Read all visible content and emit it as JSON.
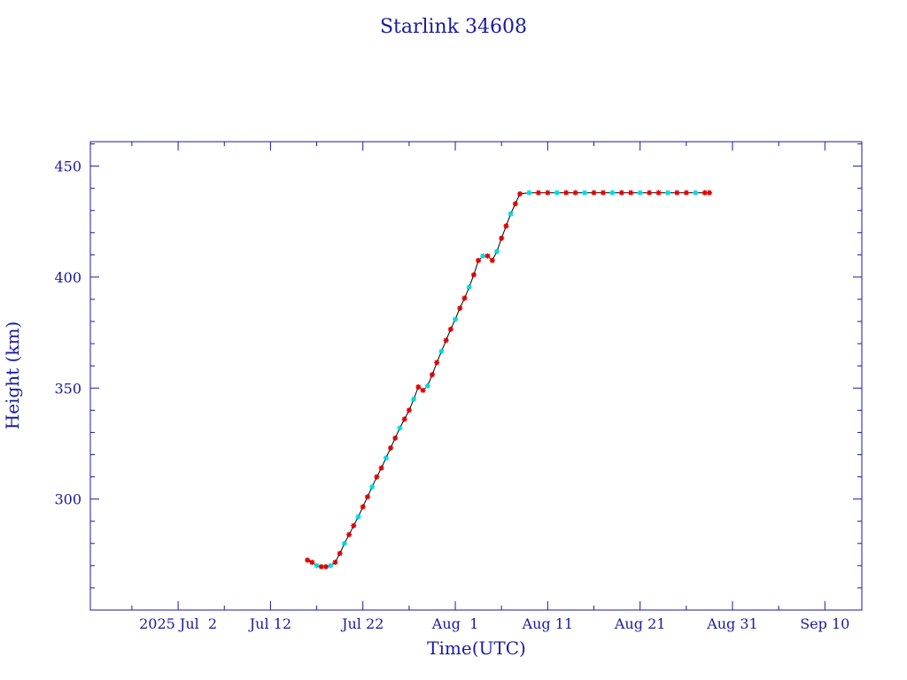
{
  "chart_data": {
    "type": "scatter",
    "title": "Starlink 34608",
    "xlabel": "Time(UTC)",
    "ylabel": "Height (km)",
    "x_ticks": [
      {
        "label": "2025 Jul  2",
        "date": "2025-07-02"
      },
      {
        "label": "Jul 12",
        "date": "2025-07-12"
      },
      {
        "label": "Jul 22",
        "date": "2025-07-22"
      },
      {
        "label": "Aug  1",
        "date": "2025-08-01"
      },
      {
        "label": "Aug 11",
        "date": "2025-08-11"
      },
      {
        "label": "Aug 21",
        "date": "2025-08-21"
      },
      {
        "label": "Aug 31",
        "date": "2025-08-31"
      },
      {
        "label": "Sep 10",
        "date": "2025-09-10"
      }
    ],
    "y_ticks": [
      300,
      350,
      400,
      450
    ],
    "xlim": [
      "2025-06-22T12:00",
      "2025-09-14T00:00"
    ],
    "ylim": [
      250,
      461
    ],
    "colors": {
      "axis": "#1a1aa0",
      "line": "#000000",
      "marker_primary": "#e00000",
      "marker_secondary": "#00d8e0"
    },
    "series": [
      {
        "points": [
          [
            "2025-07-16T00:00",
            272.5
          ],
          [
            "2025-07-16T12:00",
            271.5
          ],
          [
            "2025-07-17T00:00",
            270.0
          ],
          [
            "2025-07-17T12:00",
            269.5
          ],
          [
            "2025-07-18T00:00",
            269.5
          ],
          [
            "2025-07-18T12:00",
            270.0
          ],
          [
            "2025-07-19T00:00",
            271.5
          ],
          [
            "2025-07-19T12:00",
            275.5
          ],
          [
            "2025-07-20T00:00",
            280.0
          ],
          [
            "2025-07-20T12:00",
            284.0
          ],
          [
            "2025-07-21T00:00",
            288.0
          ],
          [
            "2025-07-21T12:00",
            292.0
          ],
          [
            "2025-07-22T00:00",
            296.5
          ],
          [
            "2025-07-22T12:00",
            301.0
          ],
          [
            "2025-07-23T00:00",
            305.5
          ],
          [
            "2025-07-23T12:00",
            310.0
          ],
          [
            "2025-07-24T00:00",
            314.0
          ],
          [
            "2025-07-24T12:00",
            318.5
          ],
          [
            "2025-07-25T00:00",
            323.0
          ],
          [
            "2025-07-25T12:00",
            327.5
          ],
          [
            "2025-07-26T00:00",
            332.0
          ],
          [
            "2025-07-26T12:00",
            336.0
          ],
          [
            "2025-07-27T00:00",
            340.0
          ],
          [
            "2025-07-27T12:00",
            345.0
          ],
          [
            "2025-07-28T00:00",
            350.5
          ],
          [
            "2025-07-28T12:00",
            349.0
          ],
          [
            "2025-07-29T00:00",
            351.0
          ],
          [
            "2025-07-29T12:00",
            356.0
          ],
          [
            "2025-07-30T00:00",
            361.5
          ],
          [
            "2025-07-30T12:00",
            366.5
          ],
          [
            "2025-07-31T00:00",
            371.5
          ],
          [
            "2025-07-31T12:00",
            376.5
          ],
          [
            "2025-08-01T00:00",
            381.0
          ],
          [
            "2025-08-01T12:00",
            386.0
          ],
          [
            "2025-08-02T00:00",
            390.5
          ],
          [
            "2025-08-02T12:00",
            395.5
          ],
          [
            "2025-08-03T00:00",
            401.0
          ],
          [
            "2025-08-03T12:00",
            407.5
          ],
          [
            "2025-08-04T00:00",
            409.5
          ],
          [
            "2025-08-04T12:00",
            409.5
          ],
          [
            "2025-08-05T00:00",
            407.5
          ],
          [
            "2025-08-05T12:00",
            411.5
          ],
          [
            "2025-08-06T00:00",
            417.5
          ],
          [
            "2025-08-06T12:00",
            423.0
          ],
          [
            "2025-08-07T00:00",
            428.5
          ],
          [
            "2025-08-07T12:00",
            433.0
          ],
          [
            "2025-08-08T00:00",
            437.5
          ],
          [
            "2025-08-09T00:00",
            438.0
          ],
          [
            "2025-08-10T00:00",
            438.0
          ],
          [
            "2025-08-11T00:00",
            438.0
          ],
          [
            "2025-08-12T00:00",
            438.0
          ],
          [
            "2025-08-13T00:00",
            438.0
          ],
          [
            "2025-08-14T00:00",
            438.0
          ],
          [
            "2025-08-15T00:00",
            438.0
          ],
          [
            "2025-08-16T00:00",
            438.0
          ],
          [
            "2025-08-17T00:00",
            438.0
          ],
          [
            "2025-08-18T00:00",
            438.0
          ],
          [
            "2025-08-19T00:00",
            438.0
          ],
          [
            "2025-08-20T00:00",
            438.0
          ],
          [
            "2025-08-21T00:00",
            438.0
          ],
          [
            "2025-08-22T00:00",
            438.0
          ],
          [
            "2025-08-23T00:00",
            438.0
          ],
          [
            "2025-08-24T00:00",
            438.0
          ],
          [
            "2025-08-25T00:00",
            438.0
          ],
          [
            "2025-08-26T00:00",
            438.0
          ],
          [
            "2025-08-27T00:00",
            438.0
          ],
          [
            "2025-08-28T00:00",
            438.0
          ],
          [
            "2025-08-28T12:00",
            438.0
          ]
        ]
      }
    ]
  }
}
